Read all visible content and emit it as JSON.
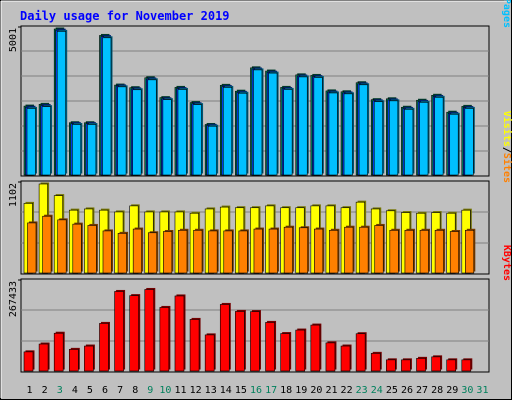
{
  "chart_data": {
    "type": "bar",
    "title": "Daily usage for November 2019",
    "days": [
      "1",
      "2",
      "3",
      "4",
      "5",
      "6",
      "7",
      "8",
      "9",
      "10",
      "11",
      "12",
      "13",
      "14",
      "15",
      "16",
      "17",
      "18",
      "19",
      "20",
      "21",
      "22",
      "23",
      "24",
      "25",
      "26",
      "27",
      "28",
      "29",
      "30",
      "31"
    ],
    "weekend_days": [
      "3",
      "9",
      "10",
      "16",
      "17",
      "23",
      "24",
      "30",
      "31"
    ],
    "panels": [
      {
        "id": "hits-files",
        "y_max_label": "5001",
        "ymax": 5001,
        "legend": [
          {
            "text": "Hits",
            "color": "#00805c"
          },
          {
            "text": "/",
            "color": "#000000"
          },
          {
            "text": "Files",
            "color": "#0040ff"
          },
          {
            "text": "/",
            "color": "#000000"
          },
          {
            "text": "Pages",
            "color": "#00c0ff"
          }
        ],
        "series": [
          {
            "key": "hits",
            "color": "#00805c",
            "values": [
              2360,
              2420,
              5001,
              1790,
              1790,
              4780,
              3080,
              2990,
              3330,
              2650,
              3000,
              2480,
              1730,
              3070,
              2870,
              3670,
              3560,
              3000,
              3430,
              3410,
              2880,
              2850,
              3160,
              2580,
              2610,
              2320,
              2560,
              2730,
              2150,
              2350,
              0
            ]
          },
          {
            "key": "files",
            "color": "#0040ff",
            "values": [
              2320,
              2380,
              4960,
              1760,
              1760,
              4740,
              3050,
              2950,
              3290,
              2610,
              2960,
              2440,
              1700,
              3030,
              2830,
              3630,
              3520,
              2960,
              3390,
              3370,
              2840,
              2810,
              3120,
              2540,
              2570,
              2280,
              2520,
              2690,
              2110,
              2310,
              0
            ]
          },
          {
            "key": "pages",
            "color": "#00c0ff",
            "values": [
              2280,
              2340,
              4920,
              1730,
              1730,
              4700,
              3020,
              2920,
              3260,
              2580,
              2930,
              2410,
              1670,
              3000,
              2800,
              3600,
              3490,
              2930,
              3360,
              3340,
              2810,
              2780,
              3090,
              2510,
              2540,
              2250,
              2490,
              2660,
              2080,
              2280,
              0
            ]
          }
        ]
      },
      {
        "id": "visits-sites",
        "y_max_label": "1102",
        "ymax": 1102,
        "legend": [
          {
            "text": "Visits",
            "color": "#ffff00"
          },
          {
            "text": "/",
            "color": "#000000"
          },
          {
            "text": "Sites",
            "color": "#ff8000"
          }
        ],
        "series": [
          {
            "key": "visits",
            "color": "#ffff00",
            "values": [
              862,
              1102,
              958,
              778,
              793,
              778,
              756,
              831,
              756,
              756,
              756,
              740,
              793,
              816,
              808,
              808,
              831,
              808,
              808,
              831,
              831,
              808,
              877,
              793,
              770,
              748,
              740,
              748,
              740,
              778,
              0
            ]
          },
          {
            "key": "sites",
            "color": "#ff8000",
            "values": [
              620,
              703,
              658,
              605,
              589,
              521,
              491,
              544,
              498,
              514,
              529,
              529,
              521,
              521,
              521,
              544,
              544,
              567,
              560,
              544,
              529,
              567,
              567,
              589,
              529,
              529,
              529,
              529,
              514,
              529,
              0
            ]
          }
        ]
      },
      {
        "id": "kbytes",
        "y_max_label": "267433",
        "ymax": 267433,
        "legend": [
          {
            "text": "KBytes",
            "color": "#ff0000"
          }
        ],
        "series": [
          {
            "key": "kbytes",
            "color": "#ff0000",
            "values": [
              57500,
              81000,
              113500,
              65000,
              75000,
              143000,
              239000,
              226500,
              245000,
              191000,
              225500,
              155000,
              108500,
              200000,
              179000,
              178500,
              146000,
              112500,
              123000,
              138000,
              84500,
              75000,
              112000,
              53000,
              33500,
              33500,
              38000,
              42500,
              33500,
              33500,
              0
            ]
          }
        ]
      }
    ]
  }
}
